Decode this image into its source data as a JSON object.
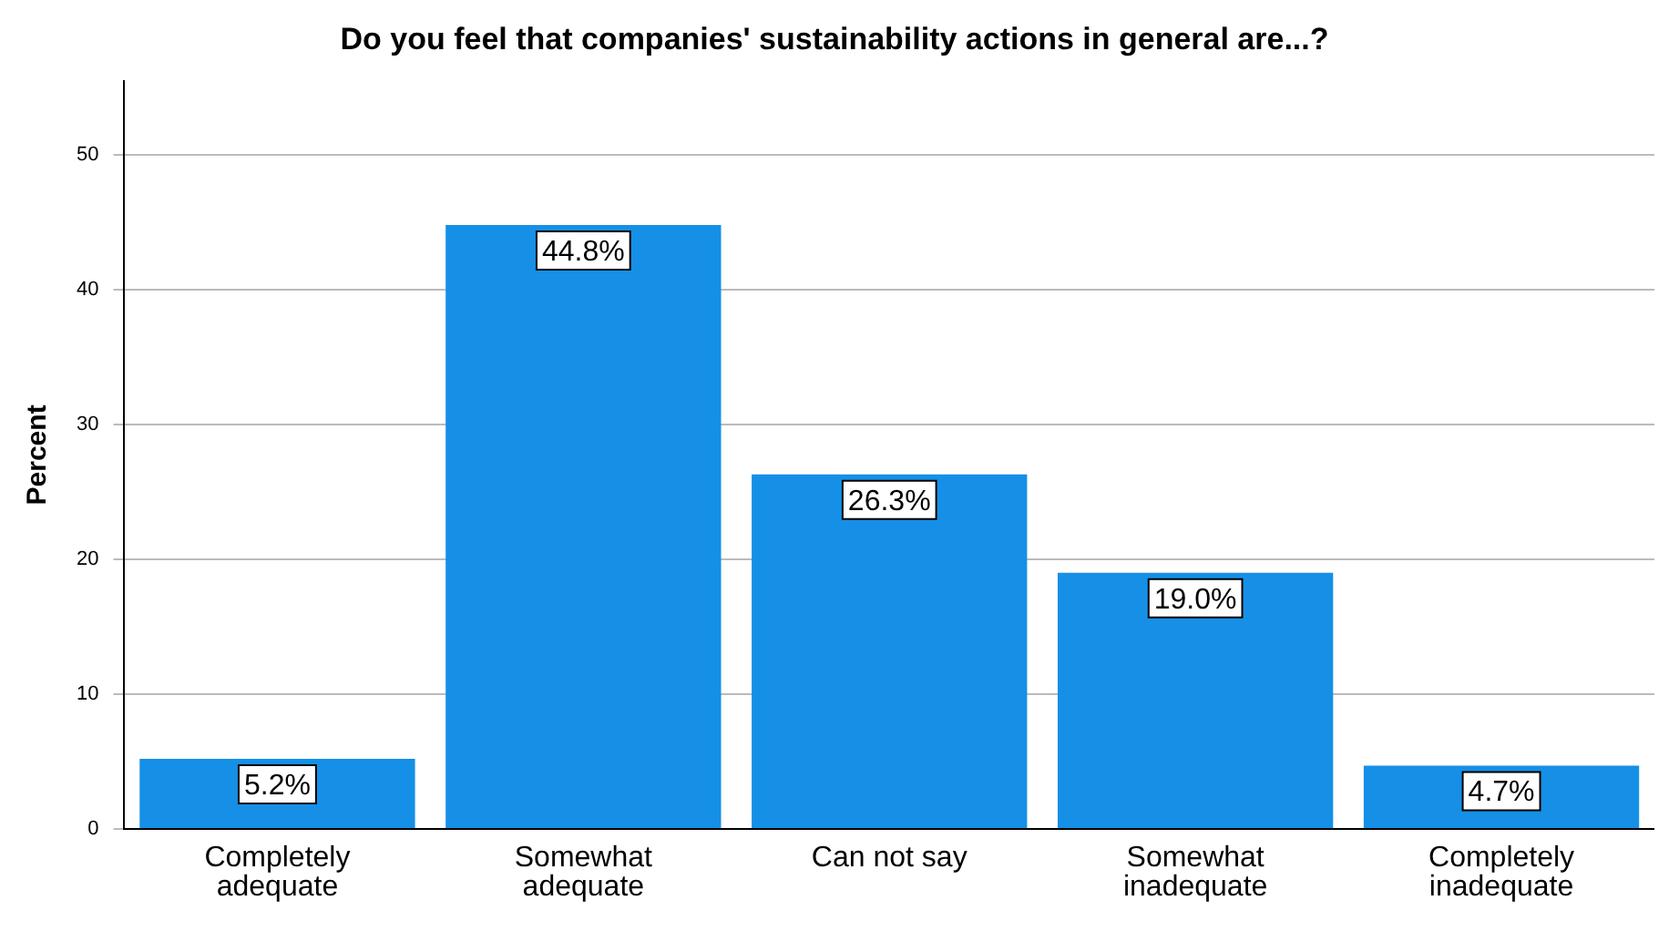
{
  "chart_data": {
    "type": "bar",
    "title": "Do you feel that companies' sustainability actions in general are...?",
    "ylabel": "Percent",
    "categories": [
      "Completely adequate",
      "Somewhat adequate",
      "Can not say",
      "Somewhat inadequate",
      "Completely inadequate"
    ],
    "values": [
      5.2,
      44.8,
      26.3,
      19.0,
      4.7
    ],
    "value_labels": [
      "5.2%",
      "44.8%",
      "26.3%",
      "19.0%",
      "4.7%"
    ],
    "color": "#1590e6",
    "ylim": [
      0,
      55.5
    ],
    "yticks": [
      0,
      10,
      20,
      30,
      40,
      50
    ],
    "grid": "y",
    "legend": false
  }
}
